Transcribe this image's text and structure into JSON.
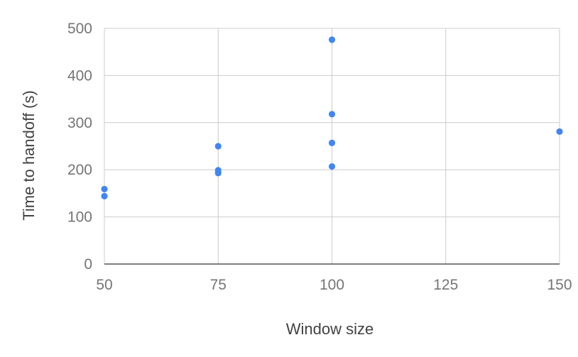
{
  "chart_data": {
    "type": "scatter",
    "title": "",
    "xlabel": "Window size",
    "ylabel": "Time to handoff (s)",
    "xlim": [
      50,
      150
    ],
    "ylim": [
      0,
      500
    ],
    "xticks": [
      50,
      75,
      100,
      125,
      150
    ],
    "yticks": [
      0,
      100,
      200,
      300,
      400,
      500
    ],
    "grid": true,
    "legend": "none",
    "point_color": "#4285f4",
    "series": [
      {
        "name": "Time to handoff",
        "points": [
          {
            "x": 50,
            "y": 159
          },
          {
            "x": 50,
            "y": 144
          },
          {
            "x": 75,
            "y": 250
          },
          {
            "x": 75,
            "y": 199
          },
          {
            "x": 75,
            "y": 193
          },
          {
            "x": 100,
            "y": 476
          },
          {
            "x": 100,
            "y": 318
          },
          {
            "x": 100,
            "y": 257
          },
          {
            "x": 100,
            "y": 207
          },
          {
            "x": 150,
            "y": 281
          }
        ]
      }
    ]
  }
}
